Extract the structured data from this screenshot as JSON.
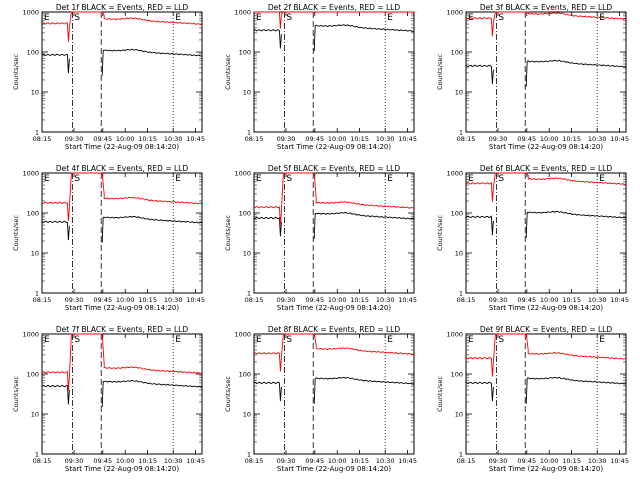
{
  "figure": {
    "ylabel": "Counts/sec",
    "xlabel": "Start Time (22-Aug-09 08:14:20)",
    "x_ticks": [
      "08:15",
      "09:30",
      "09:45",
      "10:00",
      "10:15",
      "10:30",
      "10:45"
    ],
    "y_ticks": [
      "1",
      "10",
      "100",
      "1000"
    ],
    "marker_labels": [
      "E",
      "S",
      "E"
    ],
    "colors": {
      "events": "#000000",
      "lld": "#ff0000"
    }
  },
  "chart_data": [
    {
      "type": "line",
      "title": "Det 1f BLACK = Events, RED = LLD",
      "xlabel": "Start Time (22-Aug-09 08:14:20)",
      "ylabel": "Counts/sec",
      "ylim": [
        1,
        1000
      ],
      "yscale": "log",
      "x_ticks": [
        "08:15",
        "09:30",
        "09:45",
        "10:00",
        "10:15",
        "10:30",
        "10:45"
      ],
      "y_ticks": [
        "1",
        "10",
        "100",
        "1000"
      ],
      "marker_labels": [
        "E",
        "S",
        "E"
      ],
      "series": [
        {
          "color": "#000000",
          "baseline": 85,
          "saturated": false
        },
        {
          "color": "#ff0000",
          "baseline": 520,
          "saturated": true
        }
      ]
    },
    {
      "type": "line",
      "title": "Det 2f BLACK = Events, RED = LLD",
      "xlabel": "Start Time (22-Aug-09 08:14:20)",
      "ylabel": "Counts/sec",
      "ylim": [
        1,
        1000
      ],
      "yscale": "log",
      "x_ticks": [
        "08:15",
        "09:30",
        "09:45",
        "10:00",
        "10:15",
        "10:30",
        "10:45"
      ],
      "y_ticks": [
        "1",
        "10",
        "100",
        "1000"
      ],
      "marker_labels": [
        "E",
        "S",
        "E"
      ],
      "series": [
        {
          "color": "#000000",
          "baseline": 350,
          "saturated": false
        },
        {
          "color": "#ff0000",
          "baseline": 1100,
          "saturated": true
        }
      ]
    },
    {
      "type": "line",
      "title": "Det 3f BLACK = Events, RED = LLD",
      "xlabel": "Start Time (22-Aug-09 08:14:20)",
      "ylabel": "Counts/sec",
      "ylim": [
        1,
        1000
      ],
      "yscale": "log",
      "x_ticks": [
        "08:15",
        "09:30",
        "09:45",
        "10:00",
        "10:15",
        "10:30",
        "10:45"
      ],
      "y_ticks": [
        "1",
        "10",
        "100",
        "1000"
      ],
      "marker_labels": [
        "E",
        "S",
        "E"
      ],
      "series": [
        {
          "color": "#000000",
          "baseline": 45,
          "saturated": false
        },
        {
          "color": "#ff0000",
          "baseline": 700,
          "saturated": true
        }
      ]
    },
    {
      "type": "line",
      "title": "Det 4f BLACK = Events, RED = LLD",
      "xlabel": "Start Time (22-Aug-09 08:14:20)",
      "ylabel": "Counts/sec",
      "ylim": [
        1,
        1000
      ],
      "yscale": "log",
      "x_ticks": [
        "08:15",
        "09:30",
        "09:45",
        "10:00",
        "10:15",
        "10:30",
        "10:45"
      ],
      "y_ticks": [
        "1",
        "10",
        "100",
        "1000"
      ],
      "marker_labels": [
        "E",
        "S",
        "E"
      ],
      "series": [
        {
          "color": "#000000",
          "baseline": 60,
          "saturated": false
        },
        {
          "color": "#ff0000",
          "baseline": 180,
          "saturated": true
        }
      ]
    },
    {
      "type": "line",
      "title": "Det 5f BLACK = Events, RED = LLD",
      "xlabel": "Start Time (22-Aug-09 08:14:20)",
      "ylabel": "Counts/sec",
      "ylim": [
        1,
        1000
      ],
      "yscale": "log",
      "x_ticks": [
        "08:15",
        "09:30",
        "09:45",
        "10:00",
        "10:15",
        "10:30",
        "10:45"
      ],
      "y_ticks": [
        "1",
        "10",
        "100",
        "1000"
      ],
      "marker_labels": [
        "E",
        "S",
        "E"
      ],
      "series": [
        {
          "color": "#000000",
          "baseline": 75,
          "saturated": false
        },
        {
          "color": "#ff0000",
          "baseline": 140,
          "saturated": true
        }
      ]
    },
    {
      "type": "line",
      "title": "Det 6f BLACK = Events, RED = LLD",
      "xlabel": "Start Time (22-Aug-09 08:14:20)",
      "ylabel": "Counts/sec",
      "ylim": [
        1,
        1000
      ],
      "yscale": "log",
      "x_ticks": [
        "08:15",
        "09:30",
        "09:45",
        "10:00",
        "10:15",
        "10:30",
        "10:45"
      ],
      "y_ticks": [
        "1",
        "10",
        "100",
        "1000"
      ],
      "marker_labels": [
        "E",
        "S",
        "E"
      ],
      "series": [
        {
          "color": "#000000",
          "baseline": 80,
          "saturated": false
        },
        {
          "color": "#ff0000",
          "baseline": 550,
          "saturated": true
        }
      ]
    },
    {
      "type": "line",
      "title": "Det 7f BLACK = Events, RED = LLD",
      "xlabel": "Start Time (22-Aug-09 08:14:20)",
      "ylabel": "Counts/sec",
      "ylim": [
        1,
        1000
      ],
      "yscale": "log",
      "x_ticks": [
        "08:15",
        "09:30",
        "09:45",
        "10:00",
        "10:15",
        "10:30",
        "10:45"
      ],
      "y_ticks": [
        "1",
        "10",
        "100",
        "1000"
      ],
      "marker_labels": [
        "E",
        "S",
        "E"
      ],
      "series": [
        {
          "color": "#000000",
          "baseline": 50,
          "saturated": false
        },
        {
          "color": "#ff0000",
          "baseline": 110,
          "saturated": true
        }
      ]
    },
    {
      "type": "line",
      "title": "Det 8f BLACK = Events, RED = LLD",
      "xlabel": "Start Time (22-Aug-09 08:14:20)",
      "ylabel": "Counts/sec",
      "ylim": [
        1,
        1000
      ],
      "yscale": "log",
      "x_ticks": [
        "08:15",
        "09:30",
        "09:45",
        "10:00",
        "10:15",
        "10:30",
        "10:45"
      ],
      "y_ticks": [
        "1",
        "10",
        "100",
        "1000"
      ],
      "marker_labels": [
        "E",
        "S",
        "E"
      ],
      "series": [
        {
          "color": "#000000",
          "baseline": 60,
          "saturated": false
        },
        {
          "color": "#ff0000",
          "baseline": 330,
          "saturated": true
        }
      ]
    },
    {
      "type": "line",
      "title": "Det 9f BLACK = Events, RED = LLD",
      "xlabel": "Start Time (22-Aug-09 08:14:20)",
      "ylabel": "Counts/sec",
      "ylim": [
        1,
        1000
      ],
      "yscale": "log",
      "x_ticks": [
        "08:15",
        "09:30",
        "09:45",
        "10:00",
        "10:15",
        "10:30",
        "10:45"
      ],
      "y_ticks": [
        "1",
        "10",
        "100",
        "1000"
      ],
      "marker_labels": [
        "E",
        "S",
        "E"
      ],
      "series": [
        {
          "color": "#000000",
          "baseline": 60,
          "saturated": false
        },
        {
          "color": "#ff0000",
          "baseline": 250,
          "saturated": true
        }
      ]
    }
  ]
}
